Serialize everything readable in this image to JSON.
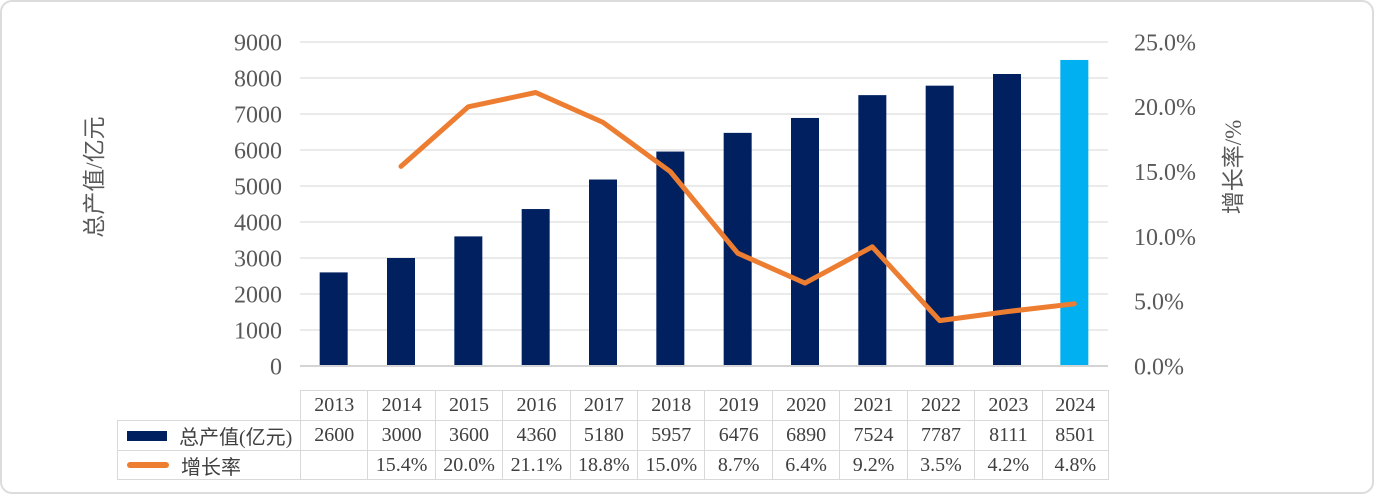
{
  "chart_data": {
    "type": "combo-bar-line",
    "categories": [
      "2013",
      "2014",
      "2015",
      "2016",
      "2017",
      "2018",
      "2019",
      "2020",
      "2021",
      "2022",
      "2023",
      "2024"
    ],
    "series": [
      {
        "name": "总产值(亿元)",
        "type": "bar",
        "axis": "left",
        "values": [
          2600,
          3000,
          3600,
          4360,
          5180,
          5957,
          6476,
          6890,
          7524,
          7787,
          8111,
          8501
        ],
        "display": [
          "2600",
          "3000",
          "3600",
          "4360",
          "5180",
          "5957",
          "6476",
          "6890",
          "7524",
          "7787",
          "8111",
          "8501"
        ]
      },
      {
        "name": "增长率",
        "type": "line",
        "axis": "right",
        "values": [
          null,
          15.4,
          20.0,
          21.1,
          18.8,
          15.0,
          8.7,
          6.4,
          9.2,
          3.5,
          4.2,
          4.8
        ],
        "display": [
          "",
          "15.4%",
          "20.0%",
          "21.1%",
          "18.8%",
          "15.0%",
          "8.7%",
          "6.4%",
          "9.2%",
          "3.5%",
          "4.2%",
          "4.8%"
        ]
      }
    ],
    "left_axis": {
      "title": "总产值/亿元",
      "min": 0,
      "max": 9000,
      "step": 1000,
      "tick_labels": [
        "0",
        "1000",
        "2000",
        "3000",
        "4000",
        "5000",
        "6000",
        "7000",
        "8000",
        "9000"
      ]
    },
    "right_axis": {
      "title": "增长率/%",
      "min": 0,
      "max": 25,
      "step": 5,
      "tick_labels": [
        "0.0%",
        "5.0%",
        "10.0%",
        "15.0%",
        "20.0%",
        "25.0%"
      ]
    },
    "grid": true,
    "highlight_last_bar": true,
    "legend_position": "table-left",
    "data_table_shown": true
  },
  "colors": {
    "bar": "#002060",
    "bar_highlight": "#00B0F0",
    "line": "#ED7D31",
    "grid": "#E4E4E4",
    "axis_line": "#D4D4D4",
    "table_border": "#D9D9D9",
    "axis_text": "#595959",
    "table_text": "#404040",
    "frame_border": "#DCDCDC",
    "background": "#FFFFFF"
  }
}
